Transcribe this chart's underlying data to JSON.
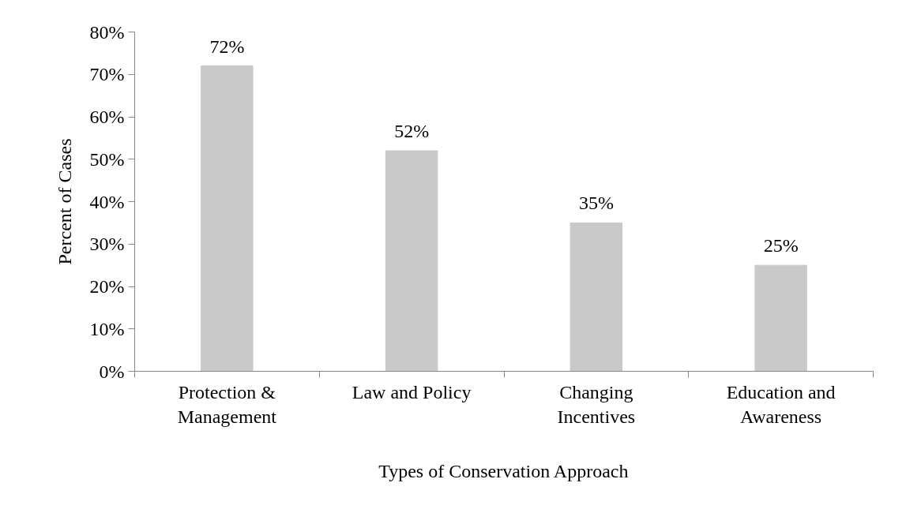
{
  "chart_data": {
    "type": "bar",
    "xlabel": "Types of Conservation Approach",
    "ylabel": "Percent of Cases",
    "categories": [
      "Protection &\nManagement",
      "Law and Policy",
      "Changing\nIncentives",
      "Education and\nAwareness"
    ],
    "values": [
      72,
      52,
      35,
      25
    ],
    "value_labels": [
      "72%",
      "52%",
      "35%",
      "25%"
    ],
    "color": "#c9c9c9",
    "ylim": [
      0,
      80
    ],
    "yticks": [
      {
        "value": 0,
        "label": "0%"
      },
      {
        "value": 10,
        "label": "10%"
      },
      {
        "value": 20,
        "label": "20%"
      },
      {
        "value": 30,
        "label": "30%"
      },
      {
        "value": 40,
        "label": "40%"
      },
      {
        "value": 50,
        "label": "50%"
      },
      {
        "value": 60,
        "label": "60%"
      },
      {
        "value": 70,
        "label": "70%"
      },
      {
        "value": 80,
        "label": "80%"
      }
    ],
    "grid": false
  }
}
